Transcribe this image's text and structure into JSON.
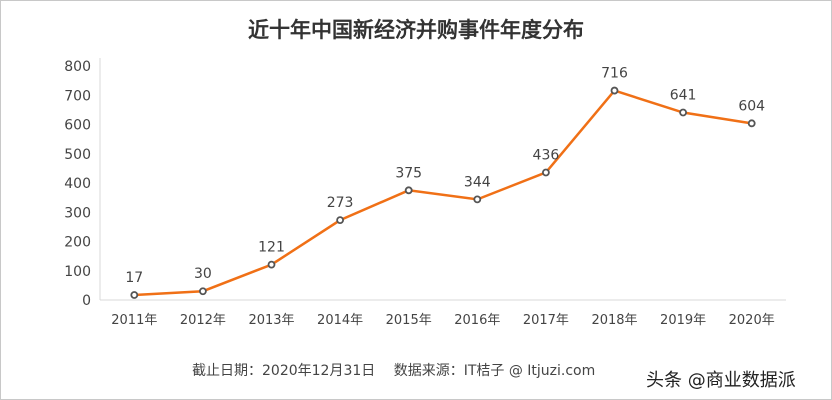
{
  "chart_data": {
    "type": "line",
    "title": "近十年中国新经济并购事件年度分布",
    "categories": [
      "2011年",
      "2012年",
      "2013年",
      "2014年",
      "2015年",
      "2016年",
      "2017年",
      "2018年",
      "2019年",
      "2020年"
    ],
    "values": [
      17,
      30,
      121,
      273,
      375,
      344,
      436,
      716,
      641,
      604
    ],
    "ylim": [
      0,
      800
    ],
    "yticks": [
      "0",
      "100",
      "200",
      "300",
      "400",
      "500",
      "600",
      "700",
      "800"
    ],
    "grid": false,
    "legend": "none",
    "data_labels": true,
    "line_color": "#f07016",
    "marker_color": "#555555"
  },
  "footer": "截止日期：2020年12月31日　 数据来源：IT桔子 @ Itjuzi.com",
  "watermark": "头条 @商业数据派"
}
